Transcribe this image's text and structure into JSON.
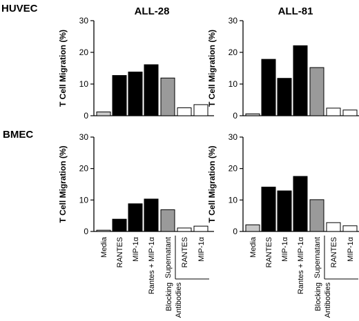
{
  "row_labels": [
    "HUVEC",
    "BMEC"
  ],
  "column_titles": [
    "ALL-28",
    "ALL-81"
  ],
  "y_axis_label": "T Cell Migration (%)",
  "y_ticks": [
    "0",
    "10",
    "20",
    "30"
  ],
  "x_labels": [
    "Media",
    "RANTES",
    "MIP-1α",
    "Rantes + MIP-1α",
    "Supernatant",
    "RANTES",
    "MIP-1α"
  ],
  "group_label": [
    "Blocking",
    "Antibodies"
  ],
  "colors": {
    "media": "#c8c8c8",
    "treatment": "#000000",
    "supernatant": "#9a9a9a",
    "blocking": "#ffffff"
  },
  "chart_data": [
    {
      "type": "bar",
      "row": "HUVEC",
      "title": "ALL-28",
      "ylim": [
        0,
        30
      ],
      "categories": [
        "Media",
        "RANTES",
        "MIP-1α",
        "Rantes + MIP-1α",
        "Supernatant",
        "RANTES",
        "MIP-1α"
      ],
      "values": [
        1.2,
        12.7,
        13.8,
        16.1,
        11.9,
        2.5,
        3.5
      ]
    },
    {
      "type": "bar",
      "row": "HUVEC",
      "title": "ALL-81",
      "ylim": [
        0,
        30
      ],
      "categories": [
        "Media",
        "RANTES",
        "MIP-1α",
        "Rantes + MIP-1α",
        "Supernatant",
        "RANTES",
        "MIP-1α"
      ],
      "values": [
        0.6,
        17.8,
        11.8,
        22.1,
        15.2,
        2.4,
        1.8
      ]
    },
    {
      "type": "bar",
      "row": "BMEC",
      "title": "ALL-28",
      "ylim": [
        0,
        30
      ],
      "categories": [
        "Media",
        "RANTES",
        "MIP-1α",
        "Rantes + MIP-1α",
        "Supernatant",
        "RANTES",
        "MIP-1α"
      ],
      "values": [
        0.4,
        3.9,
        8.8,
        10.3,
        6.9,
        1.1,
        1.7
      ]
    },
    {
      "type": "bar",
      "row": "BMEC",
      "title": "ALL-81",
      "ylim": [
        0,
        30
      ],
      "categories": [
        "Media",
        "RANTES",
        "MIP-1α",
        "Rantes + MIP-1α",
        "Supernatant",
        "RANTES",
        "MIP-1α"
      ],
      "values": [
        2.1,
        14.1,
        12.9,
        17.5,
        10.1,
        2.8,
        1.8
      ]
    }
  ]
}
